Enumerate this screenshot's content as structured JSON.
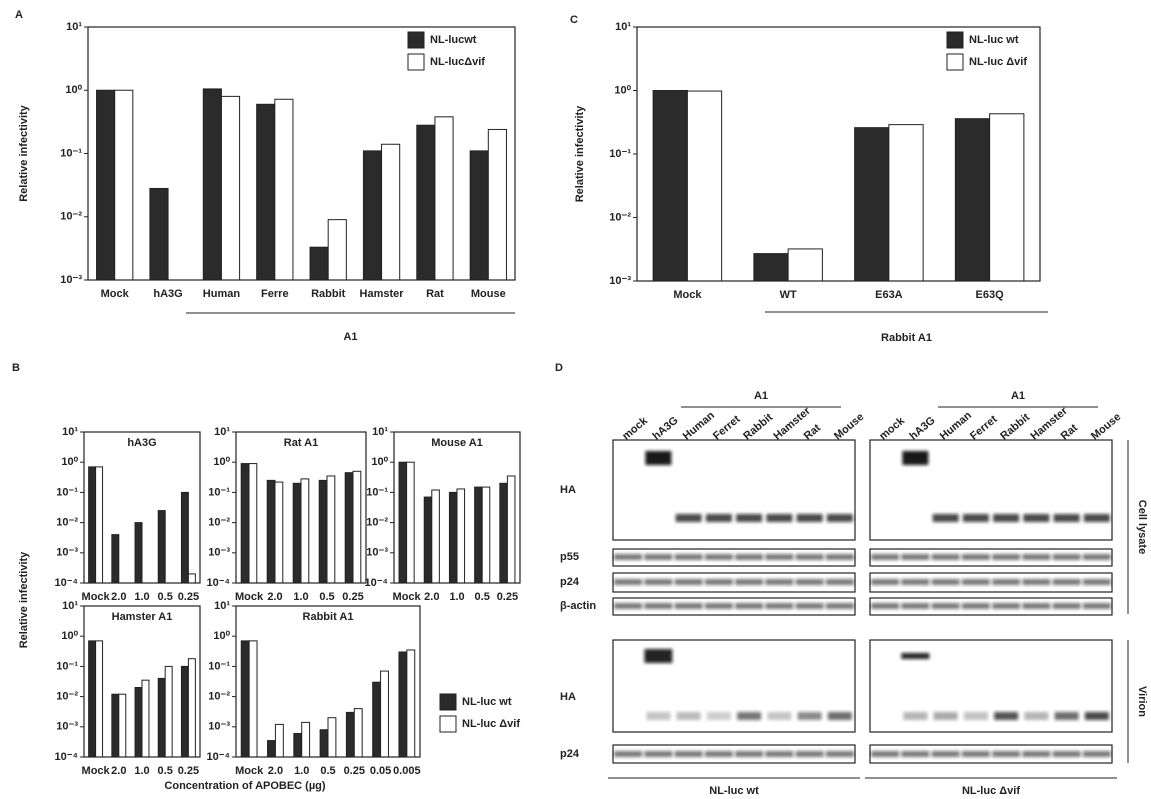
{
  "chart_data": [
    {
      "type": "bar",
      "panel": "A",
      "ylabel": "Relative infectivity",
      "log_scale": true,
      "categories": [
        "Mock",
        "hA3G",
        "Human",
        "Ferre",
        "Rabbit",
        "Hamster",
        "Rat",
        "Mouse"
      ],
      "series": [
        {
          "name": "NL-lucwt",
          "color": "#2b2b2b",
          "values": [
            1.0,
            0.028,
            1.05,
            0.6,
            0.0033,
            0.11,
            0.28,
            0.11
          ]
        },
        {
          "name": "NL-lucΔvif",
          "color": "#ffffff",
          "values": [
            1.0,
            null,
            0.8,
            0.72,
            0.009,
            0.14,
            0.38,
            0.24
          ]
        }
      ],
      "ylim": [
        0.001,
        10
      ],
      "yticks": [
        {
          "value": 0.001,
          "label": "10⁻³"
        },
        {
          "value": 0.01,
          "label": "10⁻²"
        },
        {
          "value": 0.1,
          "label": "10⁻¹"
        },
        {
          "value": 1,
          "label": "10⁰"
        },
        {
          "value": 10,
          "label": "10¹"
        }
      ],
      "group_label": "A1"
    },
    {
      "type": "bar",
      "panel": "C",
      "ylabel": "Relative infectivity",
      "log_scale": true,
      "categories": [
        "Mock",
        "WT",
        "E63A",
        "E63Q"
      ],
      "series": [
        {
          "name": "NL-luc wt",
          "color": "#2b2b2b",
          "values": [
            1.0,
            0.0027,
            0.26,
            0.36
          ]
        },
        {
          "name": "NL-luc Δvif",
          "color": "#ffffff",
          "values": [
            0.98,
            0.0032,
            0.29,
            0.43
          ]
        }
      ],
      "ylim": [
        0.001,
        10
      ],
      "yticks": [
        {
          "value": 0.001,
          "label": "10⁻³"
        },
        {
          "value": 0.01,
          "label": "10⁻²"
        },
        {
          "value": 0.1,
          "label": "10⁻¹"
        },
        {
          "value": 1,
          "label": "10⁰"
        },
        {
          "value": 10,
          "label": "10¹"
        }
      ],
      "group_label": "Rabbit A1"
    },
    {
      "type": "bar",
      "panel": "B",
      "title": "hA3G",
      "ylabel": "Relative infectivity",
      "xlabel": "Concentration of APOBEC (µg)",
      "log_scale": true,
      "categories": [
        "Mock",
        "2.0",
        "1.0",
        "0.5",
        "0.25"
      ],
      "series": [
        {
          "name": "NL-luc wt",
          "color": "#2b2b2b",
          "values": [
            0.7,
            0.004,
            0.01,
            0.025,
            0.1
          ]
        },
        {
          "name": "NL-luc Δvif",
          "color": "#ffffff",
          "values": [
            0.7,
            null,
            null,
            null,
            0.0002
          ]
        }
      ],
      "ylim": [
        0.0001,
        10
      ],
      "yticks": [
        {
          "value": 0.0001,
          "label": "10⁻⁴"
        },
        {
          "value": 0.001,
          "label": "10⁻³"
        },
        {
          "value": 0.01,
          "label": "10⁻²"
        },
        {
          "value": 0.1,
          "label": "10⁻¹"
        },
        {
          "value": 1,
          "label": "10⁰"
        },
        {
          "value": 10,
          "label": "10¹"
        }
      ]
    },
    {
      "type": "bar",
      "title": "Rat A1",
      "log_scale": true,
      "categories": [
        "Mock",
        "2.0",
        "1.0",
        "0.5",
        "0.25"
      ],
      "series": [
        {
          "color": "#2b2b2b",
          "values": [
            0.9,
            0.25,
            0.2,
            0.25,
            0.45
          ]
        },
        {
          "color": "#ffffff",
          "values": [
            0.9,
            0.22,
            0.28,
            0.35,
            0.5
          ]
        }
      ],
      "ylim": [
        0.0001,
        10
      ],
      "yticks": [
        {
          "value": 0.0001,
          "label": "10⁻⁴"
        },
        {
          "value": 0.001,
          "label": "10⁻³"
        },
        {
          "value": 0.01,
          "label": "10⁻²"
        },
        {
          "value": 0.1,
          "label": "10⁻¹"
        },
        {
          "value": 1,
          "label": "10⁰"
        },
        {
          "value": 10,
          "label": "10¹"
        }
      ]
    },
    {
      "type": "bar",
      "title": "Mouse A1",
      "log_scale": true,
      "categories": [
        "Mock",
        "2.0",
        "1.0",
        "0.5",
        "0.25"
      ],
      "series": [
        {
          "color": "#2b2b2b",
          "values": [
            1.0,
            0.07,
            0.1,
            0.15,
            0.2
          ]
        },
        {
          "color": "#ffffff",
          "values": [
            1.0,
            0.12,
            0.13,
            0.15,
            0.35
          ]
        }
      ],
      "ylim": [
        0.0001,
        10
      ],
      "yticks": [
        {
          "value": 0.0001,
          "label": "10⁻⁴"
        },
        {
          "value": 0.001,
          "label": "10⁻³"
        },
        {
          "value": 0.01,
          "label": "10⁻²"
        },
        {
          "value": 0.1,
          "label": "10⁻¹"
        },
        {
          "value": 1,
          "label": "10⁰"
        },
        {
          "value": 10,
          "label": "10¹"
        }
      ]
    },
    {
      "type": "bar",
      "title": "Hamster A1",
      "log_scale": true,
      "categories": [
        "Mock",
        "2.0",
        "1.0",
        "0.5",
        "0.25"
      ],
      "series": [
        {
          "color": "#2b2b2b",
          "values": [
            0.7,
            0.012,
            0.02,
            0.04,
            0.1
          ]
        },
        {
          "color": "#ffffff",
          "values": [
            0.7,
            0.012,
            0.035,
            0.1,
            0.18
          ]
        }
      ],
      "ylim": [
        0.0001,
        10
      ],
      "yticks": [
        {
          "value": 0.0001,
          "label": "10⁻⁴"
        },
        {
          "value": 0.001,
          "label": "10⁻³"
        },
        {
          "value": 0.01,
          "label": "10⁻²"
        },
        {
          "value": 0.1,
          "label": "10⁻¹"
        },
        {
          "value": 1,
          "label": "10⁰"
        },
        {
          "value": 10,
          "label": "10¹"
        }
      ]
    },
    {
      "type": "bar",
      "title": "Rabbit A1",
      "log_scale": true,
      "categories": [
        "Mock",
        "2.0",
        "1.0",
        "0.5",
        "0.25",
        "0.05",
        "0.005"
      ],
      "series": [
        {
          "color": "#2b2b2b",
          "values": [
            0.7,
            0.00035,
            0.0006,
            0.0008,
            0.003,
            0.03,
            0.3
          ]
        },
        {
          "color": "#ffffff",
          "values": [
            0.7,
            0.0012,
            0.0014,
            0.002,
            0.004,
            0.07,
            0.35
          ]
        }
      ],
      "ylim": [
        0.0001,
        10
      ],
      "yticks": [
        {
          "value": 0.0001,
          "label": "10⁻⁴"
        },
        {
          "value": 0.001,
          "label": "10⁻³"
        },
        {
          "value": 0.01,
          "label": "10⁻²"
        },
        {
          "value": 0.1,
          "label": "10⁻¹"
        },
        {
          "value": 1,
          "label": "10⁰"
        },
        {
          "value": 10,
          "label": "10¹"
        }
      ]
    }
  ],
  "blot": {
    "label": "D",
    "group_labels": [
      "A1",
      "A1"
    ],
    "lanes": [
      "mock",
      "hA3G",
      "Human",
      "Ferret",
      "Rabbit",
      "Hamster",
      "Rat",
      "Mouse"
    ],
    "rows": [
      "HA",
      "p55",
      "p24",
      "β-actin",
      "HA",
      "p24"
    ],
    "sections": [
      "Cell lysate",
      "Virion"
    ],
    "conditions": [
      "NL-luc wt",
      "NL-luc Δvif"
    ]
  }
}
